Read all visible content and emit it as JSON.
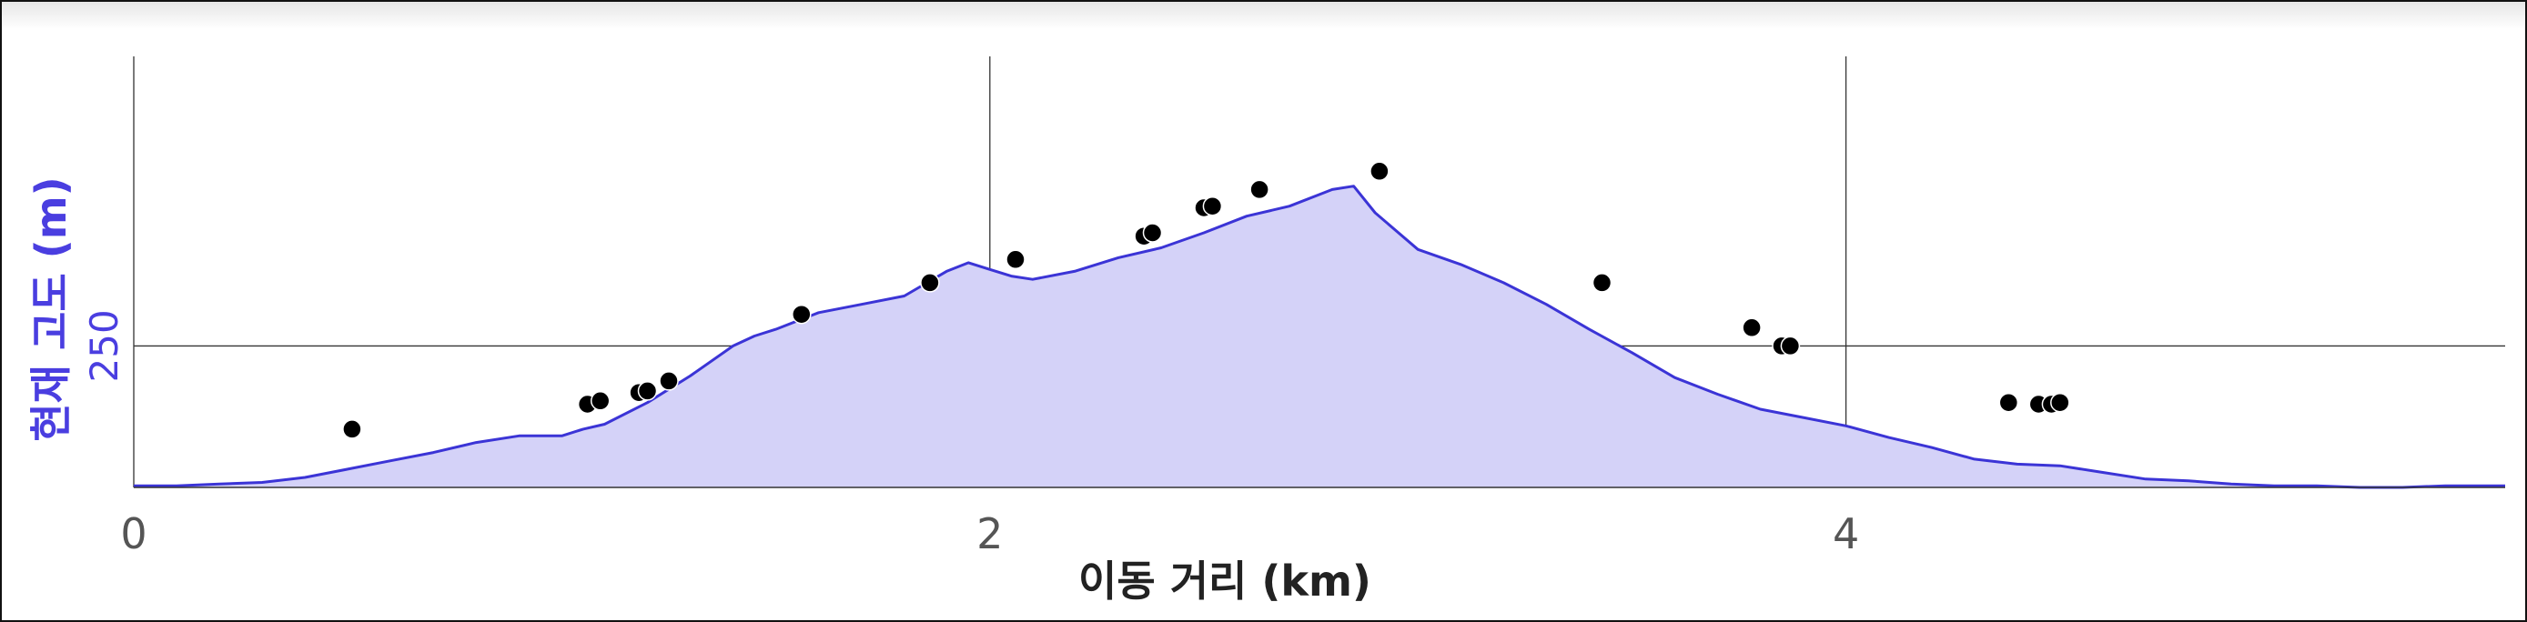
{
  "chart_data": {
    "type": "area",
    "xlabel": "이동 거리 (km)",
    "ylabel": "현재 고도 (m)",
    "x_ticks": [
      "0",
      "2",
      "4"
    ],
    "y_ticks": [
      "250"
    ],
    "xlim": [
      0,
      5.54
    ],
    "ylim": [
      165,
      424
    ],
    "grid": true,
    "colors": {
      "line": "#3b34d6",
      "fill": "#d4d2f8",
      "points": "#000000",
      "grid": "#333333"
    },
    "series": [
      {
        "type": "area",
        "x": [
          0,
          0.1,
          0.2,
          0.3,
          0.4,
          0.5,
          0.6,
          0.7,
          0.8,
          0.9,
          1.0,
          1.05,
          1.1,
          1.2,
          1.3,
          1.4,
          1.45,
          1.5,
          1.6,
          1.7,
          1.8,
          1.9,
          1.95,
          2.0,
          2.05,
          2.1,
          2.2,
          2.3,
          2.4,
          2.5,
          2.6,
          2.7,
          2.8,
          2.85,
          2.9,
          3.0,
          3.1,
          3.2,
          3.3,
          3.4,
          3.5,
          3.6,
          3.7,
          3.8,
          3.9,
          4.0,
          4.1,
          4.2,
          4.3,
          4.4,
          4.5,
          4.6,
          4.7,
          4.8,
          4.9,
          5.0,
          5.1,
          5.2,
          5.3,
          5.4,
          5.54
        ],
        "y": [
          166,
          166,
          167,
          168,
          171,
          176,
          181,
          186,
          192,
          196,
          196,
          200,
          203,
          216,
          232,
          250,
          256,
          260,
          270,
          275,
          280,
          295,
          300,
          296,
          292,
          290,
          295,
          303,
          309,
          318,
          328,
          334,
          344,
          346,
          330,
          308,
          299,
          288,
          275,
          260,
          246,
          231,
          221,
          212,
          207,
          202,
          195,
          189,
          182,
          179,
          178,
          174,
          170,
          169,
          167,
          166,
          166,
          165,
          165,
          166,
          166
        ]
      },
      {
        "type": "scatter",
        "x": [
          0.51,
          1.06,
          1.09,
          1.18,
          1.2,
          1.25,
          1.56,
          1.86,
          2.06,
          2.36,
          2.38,
          2.5,
          2.52,
          2.63,
          2.91,
          3.43,
          3.78,
          3.85,
          3.87,
          4.38,
          4.45,
          4.48,
          4.5
        ],
        "y": [
          200,
          215,
          217,
          222,
          223,
          229,
          269,
          288,
          302,
          316,
          318,
          333,
          334,
          344,
          355,
          288,
          261,
          250,
          250,
          216,
          215,
          215,
          216
        ]
      }
    ]
  }
}
